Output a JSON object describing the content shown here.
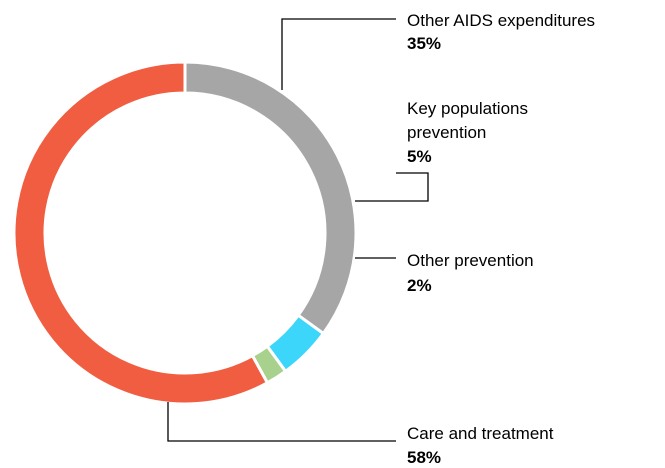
{
  "chart_data": {
    "type": "pie",
    "variant": "donut",
    "slices": [
      {
        "label": "Other AIDS expenditures",
        "value": 35,
        "value_label": "35%",
        "color": "#a6a6a6"
      },
      {
        "label": "Key populations prevention",
        "value": 5,
        "value_label": "5%",
        "color": "#3cd6fb"
      },
      {
        "label": "Other prevention",
        "value": 2,
        "value_label": "2%",
        "color": "#a9d18e"
      },
      {
        "label": "Care and treatment",
        "value": 58,
        "value_label": "58%",
        "color": "#f15d41"
      }
    ],
    "label_lines": [
      [
        "Other AIDS expenditures"
      ],
      [
        "Key populations",
        "prevention"
      ],
      [
        "Other prevention"
      ],
      [
        "Care and treatment"
      ]
    ],
    "title": "",
    "legend": "none"
  }
}
